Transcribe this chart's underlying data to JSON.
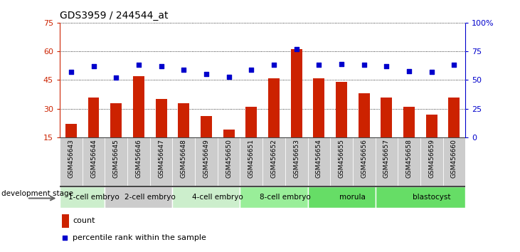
{
  "title": "GDS3959 / 244544_at",
  "samples": [
    "GSM456643",
    "GSM456644",
    "GSM456645",
    "GSM456646",
    "GSM456647",
    "GSM456648",
    "GSM456649",
    "GSM456650",
    "GSM456651",
    "GSM456652",
    "GSM456653",
    "GSM456654",
    "GSM456655",
    "GSM456656",
    "GSM456657",
    "GSM456658",
    "GSM456659",
    "GSM456660"
  ],
  "counts": [
    22,
    36,
    33,
    47,
    35,
    33,
    26,
    19,
    31,
    46,
    61,
    46,
    44,
    38,
    36,
    31,
    27,
    36
  ],
  "percentiles": [
    57,
    62,
    52,
    63,
    62,
    59,
    55,
    53,
    59,
    63,
    77,
    63,
    64,
    63,
    62,
    58,
    57,
    63
  ],
  "ylim_left": [
    15,
    75
  ],
  "ylim_right": [
    0,
    100
  ],
  "yticks_left": [
    15,
    30,
    45,
    60,
    75
  ],
  "yticks_right": [
    0,
    25,
    50,
    75,
    100
  ],
  "bar_color": "#cc2200",
  "dot_color": "#0000cc",
  "stages": [
    {
      "label": "1-cell embryo",
      "start": 0,
      "end": 2,
      "color": "#cceecc"
    },
    {
      "label": "2-cell embryo",
      "start": 2,
      "end": 5,
      "color": "#cccccc"
    },
    {
      "label": "4-cell embryo",
      "start": 5,
      "end": 8,
      "color": "#cceecc"
    },
    {
      "label": "8-cell embryo",
      "start": 8,
      "end": 11,
      "color": "#99ee99"
    },
    {
      "label": "morula",
      "start": 11,
      "end": 14,
      "color": "#66dd66"
    },
    {
      "label": "blastocyst",
      "start": 14,
      "end": 18,
      "color": "#66dd66"
    }
  ],
  "sample_bg_color": "#cccccc",
  "legend_count_label": "count",
  "legend_pct_label": "percentile rank within the sample",
  "development_stage_label": "development stage"
}
